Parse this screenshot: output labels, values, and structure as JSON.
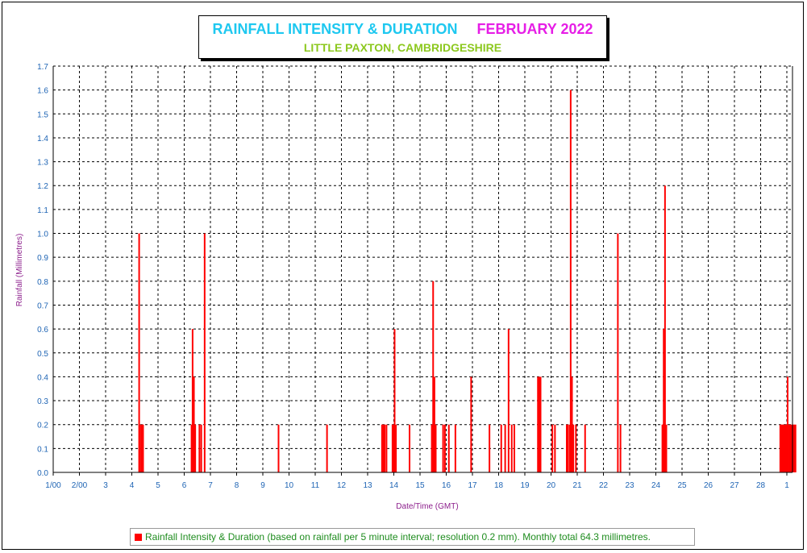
{
  "title": {
    "main": "RAINFALL INTENSITY & DURATION",
    "month": "FEBRUARY 2022",
    "location": "LITTLE PAXTON, CAMBRIDGESHIRE"
  },
  "legend": {
    "label": "Rainfall Intensity & Duration (based on rainfall per 5 minute interval; resolution 0.2 mm). Monthly total 64.3 millimetres."
  },
  "colors": {
    "bars": "#ff0000",
    "title_main": "#1ec8f0",
    "title_month": "#e61ee6",
    "title_location": "#8cc81e",
    "axis_label": "#8c1e8c",
    "tick_label": "#1e64b4",
    "legend_text": "#1e8c1e"
  },
  "chart_data": {
    "type": "bar",
    "xlabel": "Date/Time (GMT)",
    "ylabel": "Rainfall (Millimetres)",
    "xlim": [
      1,
      29.4
    ],
    "ylim": [
      0,
      1.7
    ],
    "yticks": [
      "0.0",
      "0.1",
      "0.2",
      "0.3",
      "0.4",
      "0.5",
      "0.6",
      "0.7",
      "0.8",
      "0.9",
      "1.0",
      "1.1",
      "1.2",
      "1.3",
      "1.4",
      "1.5",
      "1.6",
      "1.7"
    ],
    "xticks": [
      {
        "day": 1,
        "label": "1/00"
      },
      {
        "day": 2,
        "label": "2/00"
      },
      {
        "day": 3,
        "label": "3"
      },
      {
        "day": 4,
        "label": "4"
      },
      {
        "day": 5,
        "label": "5"
      },
      {
        "day": 6,
        "label": "6"
      },
      {
        "day": 7,
        "label": "7"
      },
      {
        "day": 8,
        "label": "8"
      },
      {
        "day": 9,
        "label": "9"
      },
      {
        "day": 10,
        "label": "10"
      },
      {
        "day": 11,
        "label": "11"
      },
      {
        "day": 12,
        "label": "12"
      },
      {
        "day": 13,
        "label": "13"
      },
      {
        "day": 14,
        "label": "14"
      },
      {
        "day": 15,
        "label": "15"
      },
      {
        "day": 16,
        "label": "16"
      },
      {
        "day": 17,
        "label": "17"
      },
      {
        "day": 18,
        "label": "18"
      },
      {
        "day": 19,
        "label": "19"
      },
      {
        "day": 20,
        "label": "20"
      },
      {
        "day": 21,
        "label": "21"
      },
      {
        "day": 22,
        "label": "22"
      },
      {
        "day": 23,
        "label": "23"
      },
      {
        "day": 24,
        "label": "24"
      },
      {
        "day": 25,
        "label": "25"
      },
      {
        "day": 26,
        "label": "26"
      },
      {
        "day": 27,
        "label": "27"
      },
      {
        "day": 28,
        "label": "28"
      },
      {
        "day": 29,
        "label": "1"
      }
    ],
    "grid": true,
    "series": [
      {
        "color": "#ff0000",
        "points": [
          {
            "x": 4.28,
            "y": 1.0
          },
          {
            "x": 4.32,
            "y": 0.2
          },
          {
            "x": 4.38,
            "y": 0.2
          },
          {
            "x": 4.43,
            "y": 0.2
          },
          {
            "x": 6.28,
            "y": 0.2
          },
          {
            "x": 6.32,
            "y": 0.6
          },
          {
            "x": 6.37,
            "y": 0.4
          },
          {
            "x": 6.42,
            "y": 0.2
          },
          {
            "x": 6.58,
            "y": 0.2
          },
          {
            "x": 6.65,
            "y": 0.2
          },
          {
            "x": 6.78,
            "y": 1.0
          },
          {
            "x": 9.6,
            "y": 0.2
          },
          {
            "x": 11.45,
            "y": 0.2
          },
          {
            "x": 13.55,
            "y": 0.2
          },
          {
            "x": 13.6,
            "y": 0.2
          },
          {
            "x": 13.65,
            "y": 0.2
          },
          {
            "x": 13.72,
            "y": 0.2
          },
          {
            "x": 13.95,
            "y": 0.2
          },
          {
            "x": 14.0,
            "y": 0.2
          },
          {
            "x": 14.03,
            "y": 0.6
          },
          {
            "x": 14.08,
            "y": 0.2
          },
          {
            "x": 14.6,
            "y": 0.2
          },
          {
            "x": 15.45,
            "y": 0.2
          },
          {
            "x": 15.5,
            "y": 0.8
          },
          {
            "x": 15.55,
            "y": 0.4
          },
          {
            "x": 15.6,
            "y": 0.2
          },
          {
            "x": 15.88,
            "y": 0.2
          },
          {
            "x": 15.95,
            "y": 0.2
          },
          {
            "x": 16.1,
            "y": 0.2
          },
          {
            "x": 16.35,
            "y": 0.2
          },
          {
            "x": 16.95,
            "y": 0.4
          },
          {
            "x": 17.65,
            "y": 0.2
          },
          {
            "x": 18.1,
            "y": 0.2
          },
          {
            "x": 18.25,
            "y": 0.2
          },
          {
            "x": 18.38,
            "y": 0.6
          },
          {
            "x": 18.5,
            "y": 0.2
          },
          {
            "x": 18.6,
            "y": 0.2
          },
          {
            "x": 19.5,
            "y": 0.4
          },
          {
            "x": 19.55,
            "y": 0.4
          },
          {
            "x": 19.6,
            "y": 0.4
          },
          {
            "x": 20.05,
            "y": 0.2
          },
          {
            "x": 20.15,
            "y": 0.2
          },
          {
            "x": 20.6,
            "y": 0.2
          },
          {
            "x": 20.65,
            "y": 0.2
          },
          {
            "x": 20.72,
            "y": 0.2
          },
          {
            "x": 20.75,
            "y": 1.6
          },
          {
            "x": 20.8,
            "y": 0.4
          },
          {
            "x": 20.85,
            "y": 0.2
          },
          {
            "x": 20.95,
            "y": 0.2
          },
          {
            "x": 21.3,
            "y": 0.2
          },
          {
            "x": 22.55,
            "y": 1.0
          },
          {
            "x": 22.65,
            "y": 0.2
          },
          {
            "x": 24.25,
            "y": 0.2
          },
          {
            "x": 24.3,
            "y": 0.6
          },
          {
            "x": 24.35,
            "y": 1.2
          },
          {
            "x": 24.4,
            "y": 0.2
          },
          {
            "x": 28.75,
            "y": 0.2
          },
          {
            "x": 28.8,
            "y": 0.2
          },
          {
            "x": 28.85,
            "y": 0.2
          },
          {
            "x": 28.9,
            "y": 0.2
          },
          {
            "x": 28.95,
            "y": 0.2
          },
          {
            "x": 29.0,
            "y": 0.2
          },
          {
            "x": 29.03,
            "y": 0.4
          },
          {
            "x": 29.08,
            "y": 0.2
          },
          {
            "x": 29.13,
            "y": 0.2
          },
          {
            "x": 29.18,
            "y": 0.2
          },
          {
            "x": 29.23,
            "y": 0.2
          },
          {
            "x": 29.28,
            "y": 0.2
          },
          {
            "x": 29.33,
            "y": 0.2
          }
        ]
      }
    ]
  }
}
